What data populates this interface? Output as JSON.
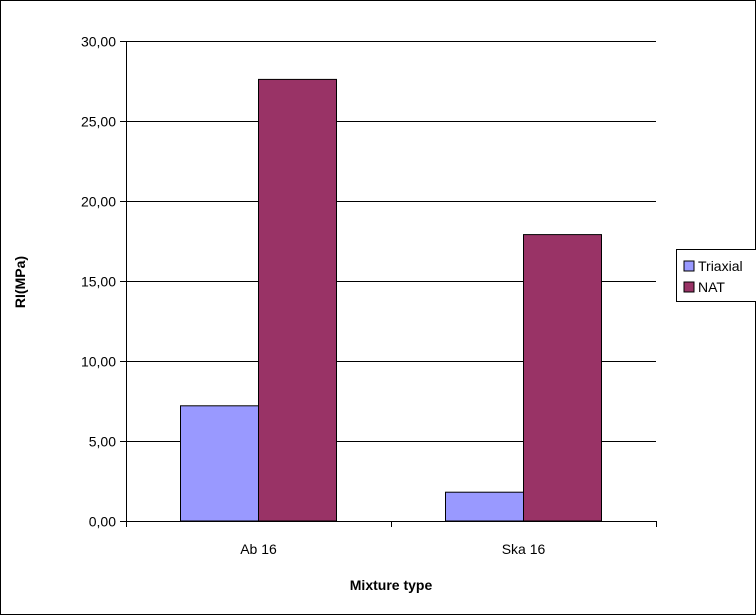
{
  "chart_data": {
    "type": "bar",
    "title": "",
    "xlabel": "Mixture type",
    "ylabel": "RI(MPa)",
    "categories": [
      "Ab 16",
      "Ska 16"
    ],
    "series": [
      {
        "name": "Triaxial",
        "values": [
          7.2,
          1.8
        ],
        "color": "#9999ff"
      },
      {
        "name": "NAT",
        "values": [
          27.6,
          17.9
        ],
        "color": "#993366"
      }
    ],
    "ylim": [
      0,
      30
    ],
    "yticks": [
      "0,00",
      "5,00",
      "10,00",
      "15,00",
      "20,00",
      "25,00",
      "30,00"
    ],
    "ytick_values": [
      0,
      5,
      10,
      15,
      20,
      25,
      30
    ],
    "grid": true,
    "legend_position": "right"
  }
}
